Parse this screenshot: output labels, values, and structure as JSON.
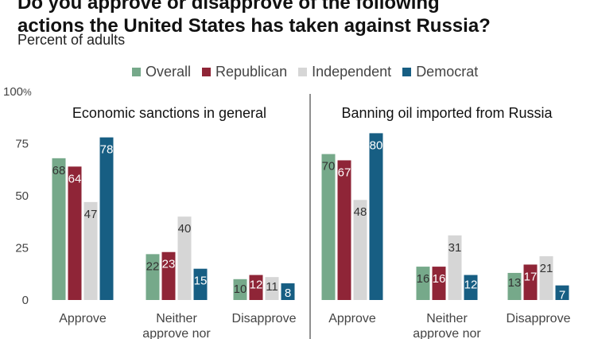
{
  "title_lines": [
    "Do you approve or disapprove of the following",
    "actions the United States has taken against Russia?"
  ],
  "subtitle": "Percent of adults",
  "colors": {
    "Overall": "#76a98a",
    "Republican": "#8f2537",
    "Independent": "#d6d6d6",
    "Democrat": "#175e83"
  },
  "chart_data": {
    "type": "bar",
    "title": "Do you approve or disapprove of the following actions the United States has taken against Russia?",
    "subtitle": "Percent of adults",
    "ylim": [
      0,
      100
    ],
    "yticks": [
      "0",
      "25",
      "50",
      "75",
      "100%"
    ],
    "legend": [
      "Overall",
      "Republican",
      "Independent",
      "Democrat"
    ],
    "legend_position": "top",
    "panels": [
      {
        "title": "Economic sanctions in general",
        "categories": [
          "Approve",
          "Neither approve nor",
          "Disapprove"
        ],
        "series": [
          {
            "name": "Overall",
            "values": [
              68,
              22,
              10
            ]
          },
          {
            "name": "Republican",
            "values": [
              64,
              23,
              12
            ]
          },
          {
            "name": "Independent",
            "values": [
              47,
              40,
              11
            ]
          },
          {
            "name": "Democrat",
            "values": [
              78,
              15,
              8
            ]
          }
        ]
      },
      {
        "title": "Banning oil imported from Russia",
        "categories": [
          "Approve",
          "Neither approve nor",
          "Disapprove"
        ],
        "series": [
          {
            "name": "Overall",
            "values": [
              70,
              16,
              13
            ]
          },
          {
            "name": "Republican",
            "values": [
              67,
              16,
              17
            ]
          },
          {
            "name": "Independent",
            "values": [
              48,
              31,
              21
            ]
          },
          {
            "name": "Democrat",
            "values": [
              80,
              12,
              7
            ]
          }
        ]
      }
    ]
  }
}
